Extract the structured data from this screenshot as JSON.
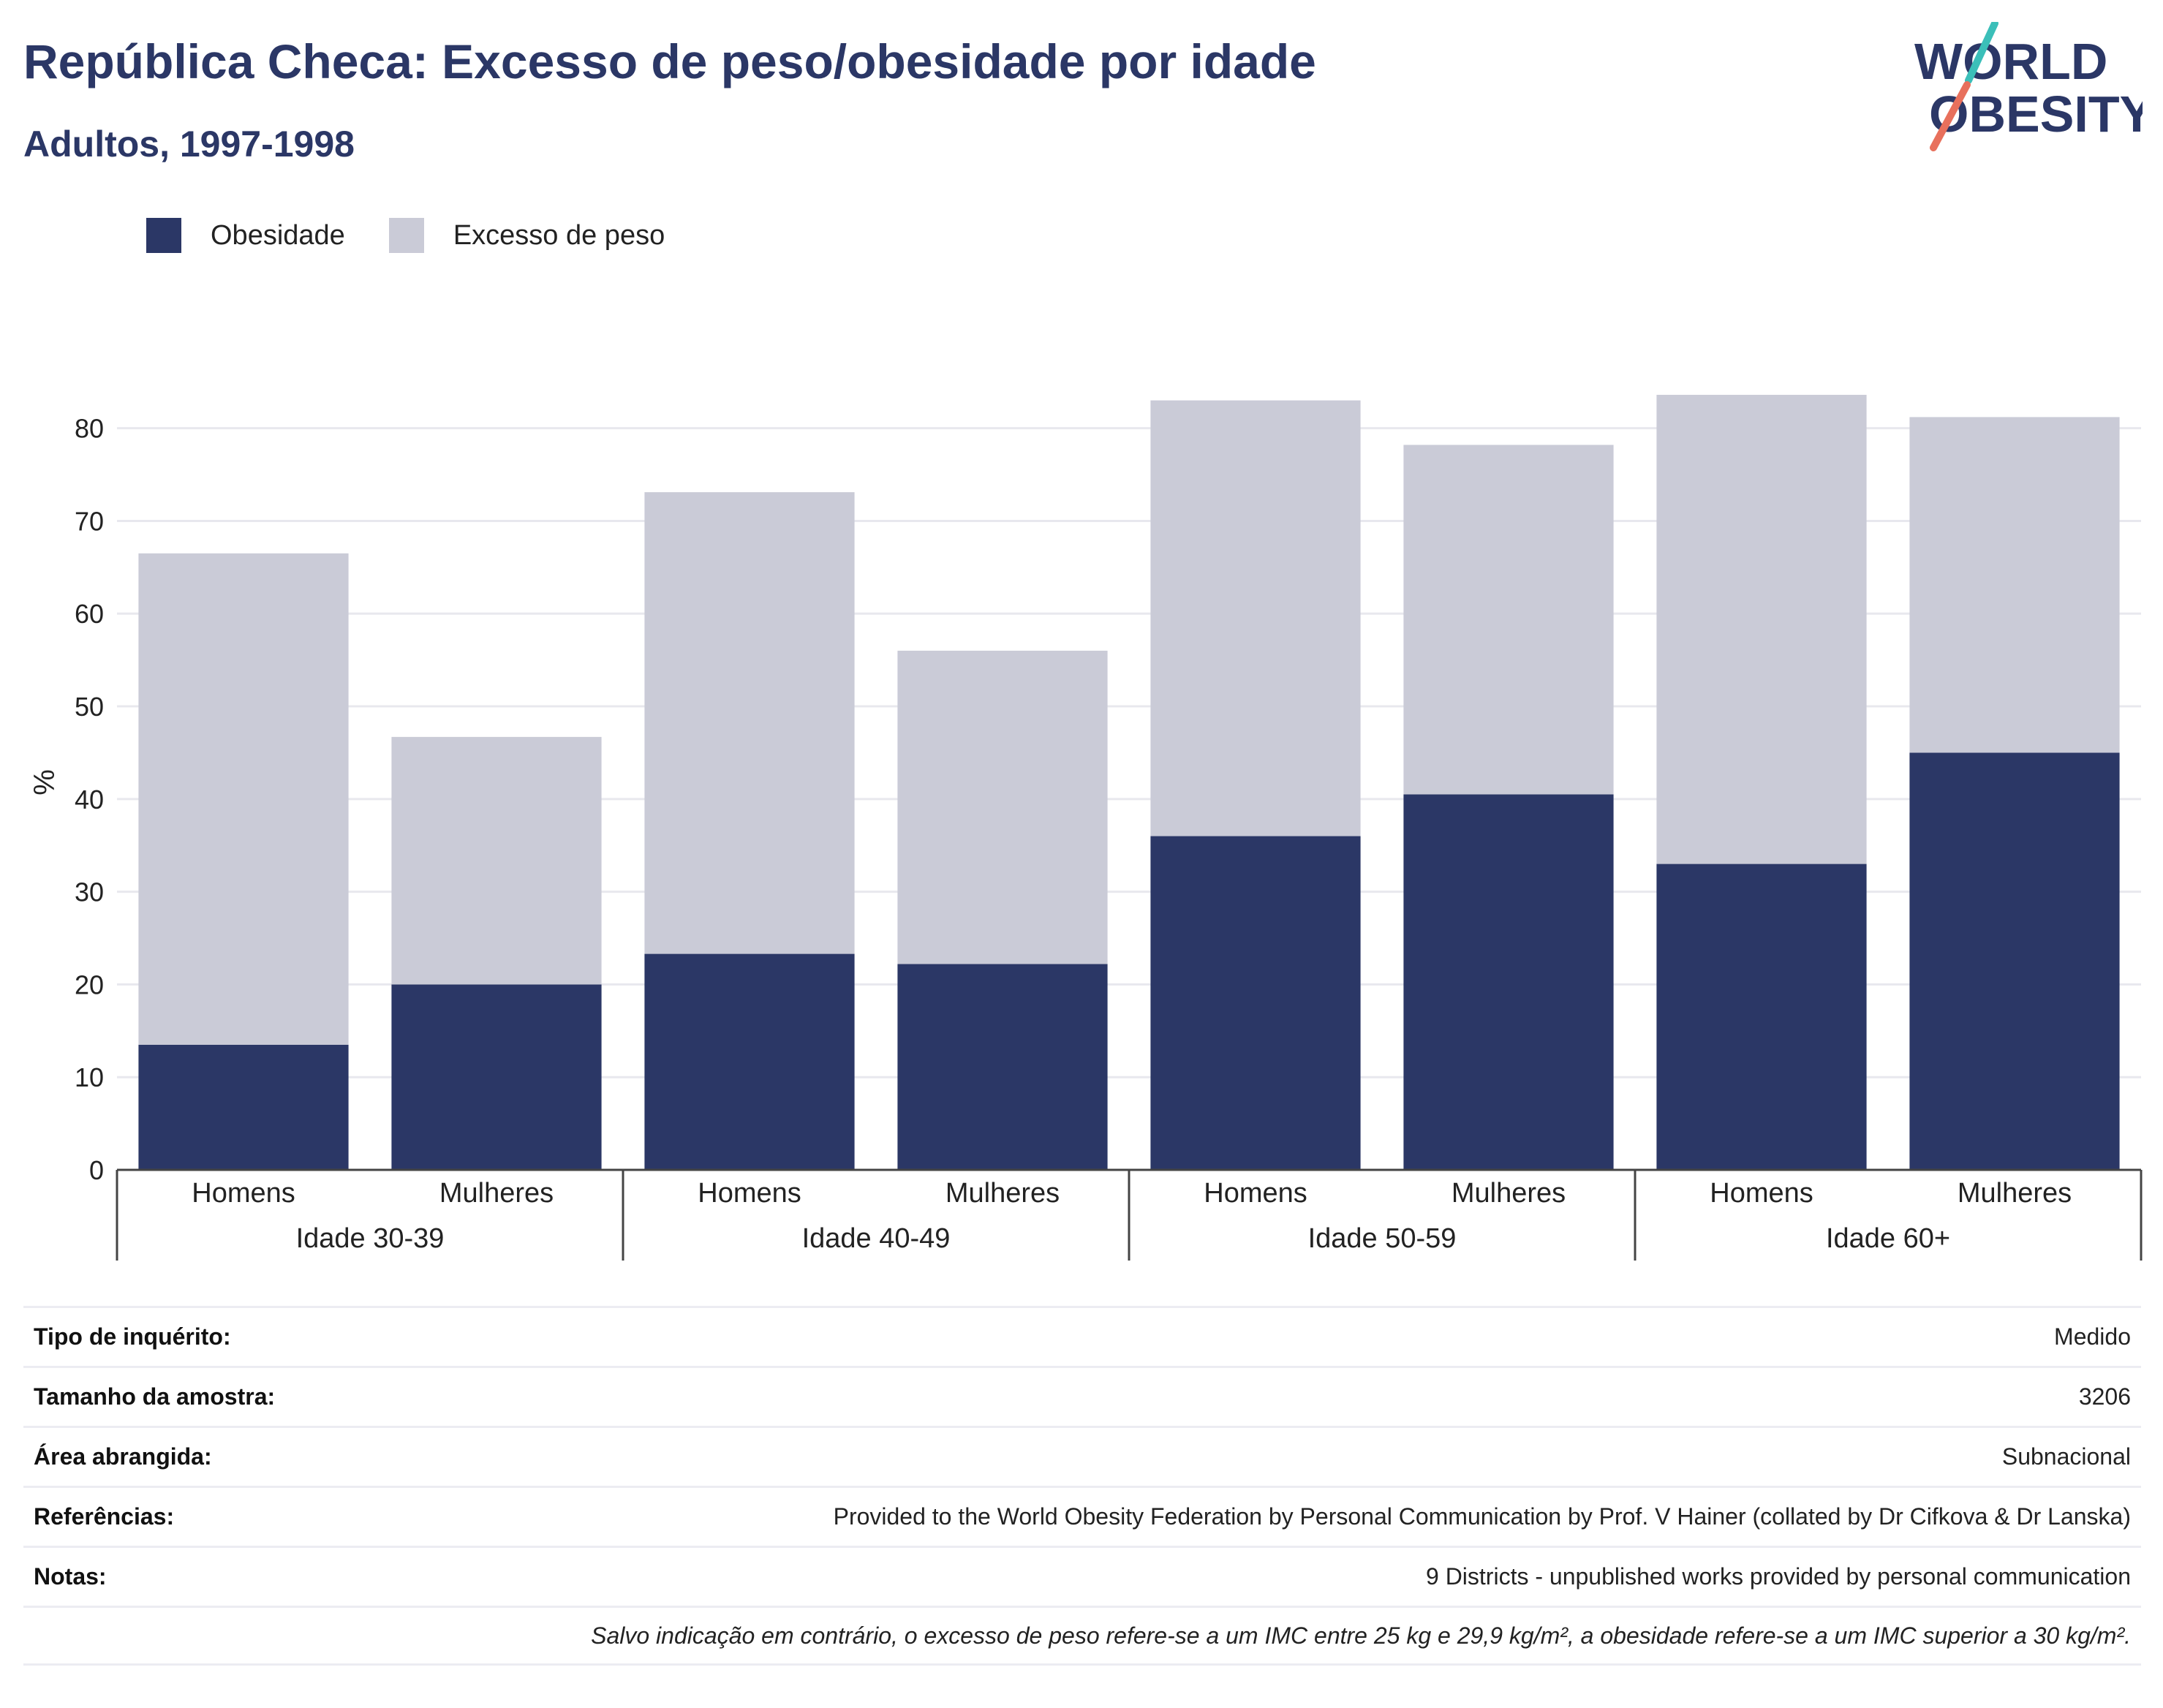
{
  "title": "República Checa: Excesso de peso/obesidade por idade",
  "subtitle": "Adultos, 1997-1998",
  "logo": {
    "line1": "WORLD",
    "line2": "OBESITY"
  },
  "colors": {
    "obesity": "#2b3766",
    "overweight": "#cacbd7",
    "title": "#2b3766",
    "grid": "#e8e8ee",
    "logo_teal": "#3bbfb9",
    "logo_coral": "#e8705c"
  },
  "legend": [
    {
      "label": "Obesidade",
      "color": "#2b3766"
    },
    {
      "label": "Excesso de peso",
      "color": "#cacbd7"
    }
  ],
  "chart_data": {
    "type": "bar",
    "stacked": true,
    "ylabel": "%",
    "ylim": [
      0,
      83.6
    ],
    "yticks": [
      0,
      10,
      20,
      30,
      40,
      50,
      60,
      70,
      80
    ],
    "groups": [
      "Idade 30-39",
      "Idade 40-49",
      "Idade 50-59",
      "Idade 60+"
    ],
    "categories": [
      "Homens",
      "Mulheres",
      "Homens",
      "Mulheres",
      "Homens",
      "Mulheres",
      "Homens",
      "Mulheres"
    ],
    "series": [
      {
        "name": "Obesidade",
        "values": [
          13.5,
          20.0,
          23.3,
          22.2,
          36.0,
          40.5,
          33.0,
          45.0
        ]
      },
      {
        "name": "Excesso de peso",
        "values": [
          53.0,
          26.7,
          49.8,
          33.8,
          47.0,
          37.7,
          50.6,
          36.2
        ]
      }
    ],
    "grid": true,
    "legend_position": "top-left"
  },
  "info": [
    {
      "label": "Tipo de inquérito:",
      "value": "Medido"
    },
    {
      "label": "Tamanho da amostra:",
      "value": "3206"
    },
    {
      "label": "Área abrangida:",
      "value": "Subnacional"
    },
    {
      "label": "Referências:",
      "value": "Provided to the World Obesity Federation by Personal Communication by Prof. V Hainer (collated by Dr Cifkova & Dr Lanska)"
    },
    {
      "label": "Notas:",
      "value": "9 Districts - unpublished works provided by personal communication"
    }
  ],
  "footnote": "Salvo indicação em contrário, o excesso de peso refere-se a um IMC entre 25 kg e 29,9 kg/m², a obesidade refere-se a um IMC superior a 30 kg/m²."
}
